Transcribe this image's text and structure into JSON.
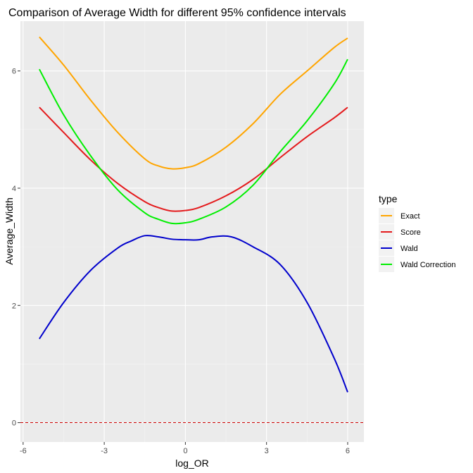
{
  "chart_data": {
    "type": "line",
    "title": "Comparison of Average Width for different 95% confidence intervals",
    "xlabel": "log_OR",
    "ylabel": "Average_Width",
    "xlim": [
      -6.1,
      6.6
    ],
    "ylim": [
      -0.33,
      6.85
    ],
    "xticks": [
      -6,
      -3,
      0,
      3,
      6
    ],
    "yticks": [
      0,
      2,
      4,
      6
    ],
    "xtick_labels": [
      "-6",
      "-3",
      "0",
      "3",
      "6"
    ],
    "ytick_labels": [
      "0",
      "2",
      "4",
      "6"
    ],
    "grid": true,
    "legend": {
      "title": "type",
      "placement": "right"
    },
    "reference_line": {
      "y": 0,
      "color": "#cc0000",
      "style": "dashed"
    },
    "series": [
      {
        "name": "Exact",
        "color": "#FFA500",
        "points": [
          [
            -5.4,
            6.58
          ],
          [
            -4.5,
            6.1
          ],
          [
            -3.5,
            5.5
          ],
          [
            -2.5,
            4.95
          ],
          [
            -1.5,
            4.5
          ],
          [
            -1.0,
            4.38
          ],
          [
            -0.5,
            4.33
          ],
          [
            0.0,
            4.35
          ],
          [
            0.5,
            4.42
          ],
          [
            1.5,
            4.7
          ],
          [
            2.5,
            5.1
          ],
          [
            3.5,
            5.6
          ],
          [
            4.5,
            6.0
          ],
          [
            5.5,
            6.4
          ],
          [
            6.0,
            6.56
          ]
        ]
      },
      {
        "name": "Score",
        "color": "#E41A1C",
        "points": [
          [
            -5.4,
            5.38
          ],
          [
            -4.5,
            4.95
          ],
          [
            -3.5,
            4.48
          ],
          [
            -2.5,
            4.08
          ],
          [
            -1.5,
            3.77
          ],
          [
            -1.0,
            3.67
          ],
          [
            -0.5,
            3.61
          ],
          [
            0.0,
            3.62
          ],
          [
            0.5,
            3.67
          ],
          [
            1.5,
            3.87
          ],
          [
            2.5,
            4.15
          ],
          [
            3.5,
            4.52
          ],
          [
            4.5,
            4.88
          ],
          [
            5.5,
            5.2
          ],
          [
            6.0,
            5.38
          ]
        ]
      },
      {
        "name": "Wald",
        "color": "#0000CC",
        "points": [
          [
            -5.4,
            1.43
          ],
          [
            -4.5,
            2.05
          ],
          [
            -3.5,
            2.6
          ],
          [
            -2.5,
            2.98
          ],
          [
            -2.0,
            3.1
          ],
          [
            -1.5,
            3.19
          ],
          [
            -1.0,
            3.17
          ],
          [
            -0.5,
            3.13
          ],
          [
            0.0,
            3.12
          ],
          [
            0.5,
            3.12
          ],
          [
            1.0,
            3.17
          ],
          [
            1.7,
            3.17
          ],
          [
            2.5,
            3.0
          ],
          [
            3.5,
            2.7
          ],
          [
            4.5,
            2.05
          ],
          [
            5.5,
            1.1
          ],
          [
            6.0,
            0.52
          ]
        ]
      },
      {
        "name": "Wald Correction",
        "color": "#00EE00",
        "points": [
          [
            -5.4,
            6.03
          ],
          [
            -4.5,
            5.25
          ],
          [
            -3.5,
            4.55
          ],
          [
            -2.5,
            3.97
          ],
          [
            -1.5,
            3.58
          ],
          [
            -1.0,
            3.47
          ],
          [
            -0.5,
            3.4
          ],
          [
            0.0,
            3.41
          ],
          [
            0.5,
            3.47
          ],
          [
            1.5,
            3.68
          ],
          [
            2.5,
            4.05
          ],
          [
            3.5,
            4.62
          ],
          [
            4.5,
            5.15
          ],
          [
            5.5,
            5.78
          ],
          [
            6.0,
            6.2
          ]
        ]
      }
    ]
  }
}
